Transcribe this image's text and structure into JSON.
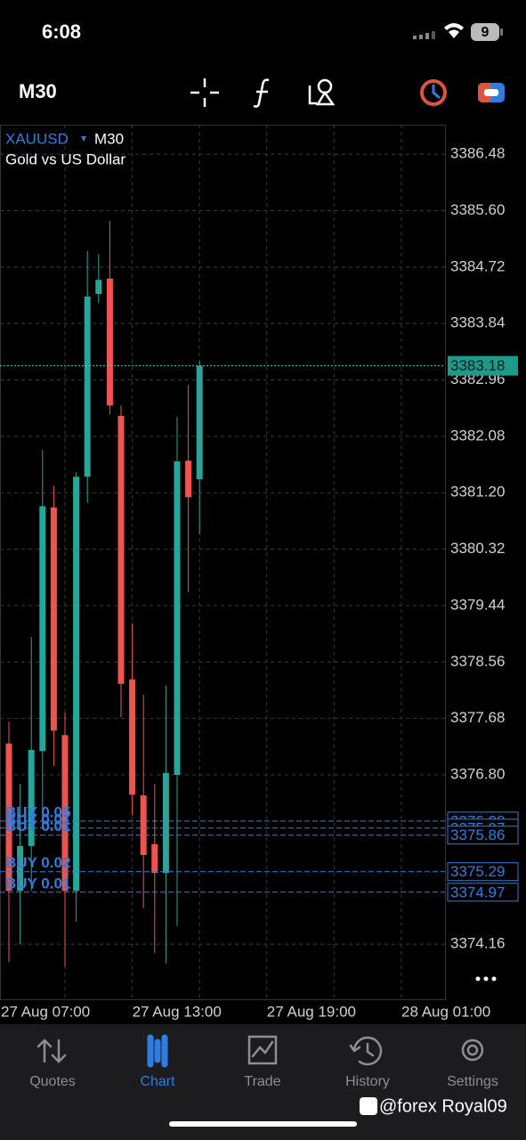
{
  "status_bar": {
    "time": "6:08",
    "battery": "9"
  },
  "toolbar": {
    "timeframe": "M30"
  },
  "chart_data": {
    "type": "candlestick",
    "symbol": "XAUUSD",
    "timeframe": "M30",
    "subtitle": "Gold vs US Dollar",
    "categories": [
      null,
      null,
      null,
      null,
      null,
      null,
      null,
      null,
      null,
      null,
      null,
      null,
      null,
      null,
      null,
      null,
      null,
      null
    ],
    "open": [
      3377.29,
      3374.99,
      3375.69,
      3377.17,
      3380.97,
      3377.42,
      3374.99,
      3381.45,
      3384.3,
      3384.54,
      3382.4,
      3378.29,
      3376.48,
      3375.72,
      3375.27,
      3376.8,
      3381.7,
      3381.41
    ],
    "high": [
      3377.63,
      3376.66,
      3378.95,
      3381.87,
      3381.31,
      3377.77,
      3381.52,
      3384.97,
      3384.92,
      3385.44,
      3382.56,
      3379.16,
      3378.05,
      3376.66,
      3378.19,
      3382.38,
      3382.88,
      3383.26
    ],
    "low": [
      3373.88,
      3374.16,
      3374.99,
      3375.97,
      3376.94,
      3373.81,
      3374.51,
      3381.04,
      3384.16,
      3382.42,
      3377.7,
      3376.17,
      3374.72,
      3374.02,
      3373.86,
      3374.44,
      3379.65,
      3380.55
    ],
    "close": [
      3374.99,
      3375.69,
      3377.19,
      3380.99,
      3377.49,
      3374.99,
      3381.45,
      3384.26,
      3384.52,
      3382.56,
      3378.22,
      3376.49,
      3375.55,
      3375.27,
      3376.83,
      3381.69,
      3381.13,
      3383.18
    ],
    "up_color": "#26a69a",
    "down_color": "#ef5350",
    "ylim": [
      3373.3,
      3386.94
    ],
    "yticks": [
      3386.48,
      {
        "value": 3385.6,
        "label": "3385.60"
      },
      3384.72,
      3383.84,
      3382.96,
      3382.08,
      {
        "value": 3381.2,
        "label": "3381.20"
      },
      3380.32,
      3379.44,
      3378.56,
      3377.68,
      {
        "value": 3376.8,
        "label": "3376.80"
      },
      3374.16
    ],
    "xtick_labels": [
      "27 Aug 07:00",
      "27 Aug 13:00",
      "27 Aug 19:00",
      "28 Aug 01:00"
    ],
    "grid": true,
    "current_price": 3383.18,
    "positions": [
      {
        "label": "BUY 0.05",
        "price": 3376.08
      },
      {
        "label": "BUY 0.01",
        "price": 3375.97
      },
      {
        "label": "BUY 0.01",
        "price": 3375.86
      },
      {
        "label": "BUY 0.02",
        "price": 3375.29
      },
      {
        "label": "BUY 0.01",
        "price": 3374.97
      }
    ],
    "position_color": "#2f7de1"
  },
  "tabs": [
    {
      "label": "Quotes",
      "active": false
    },
    {
      "label": "Chart",
      "active": true
    },
    {
      "label": "Trade",
      "active": false
    },
    {
      "label": "History",
      "active": false
    },
    {
      "label": "Settings",
      "active": false
    }
  ],
  "watermark": "@forex Royal09"
}
